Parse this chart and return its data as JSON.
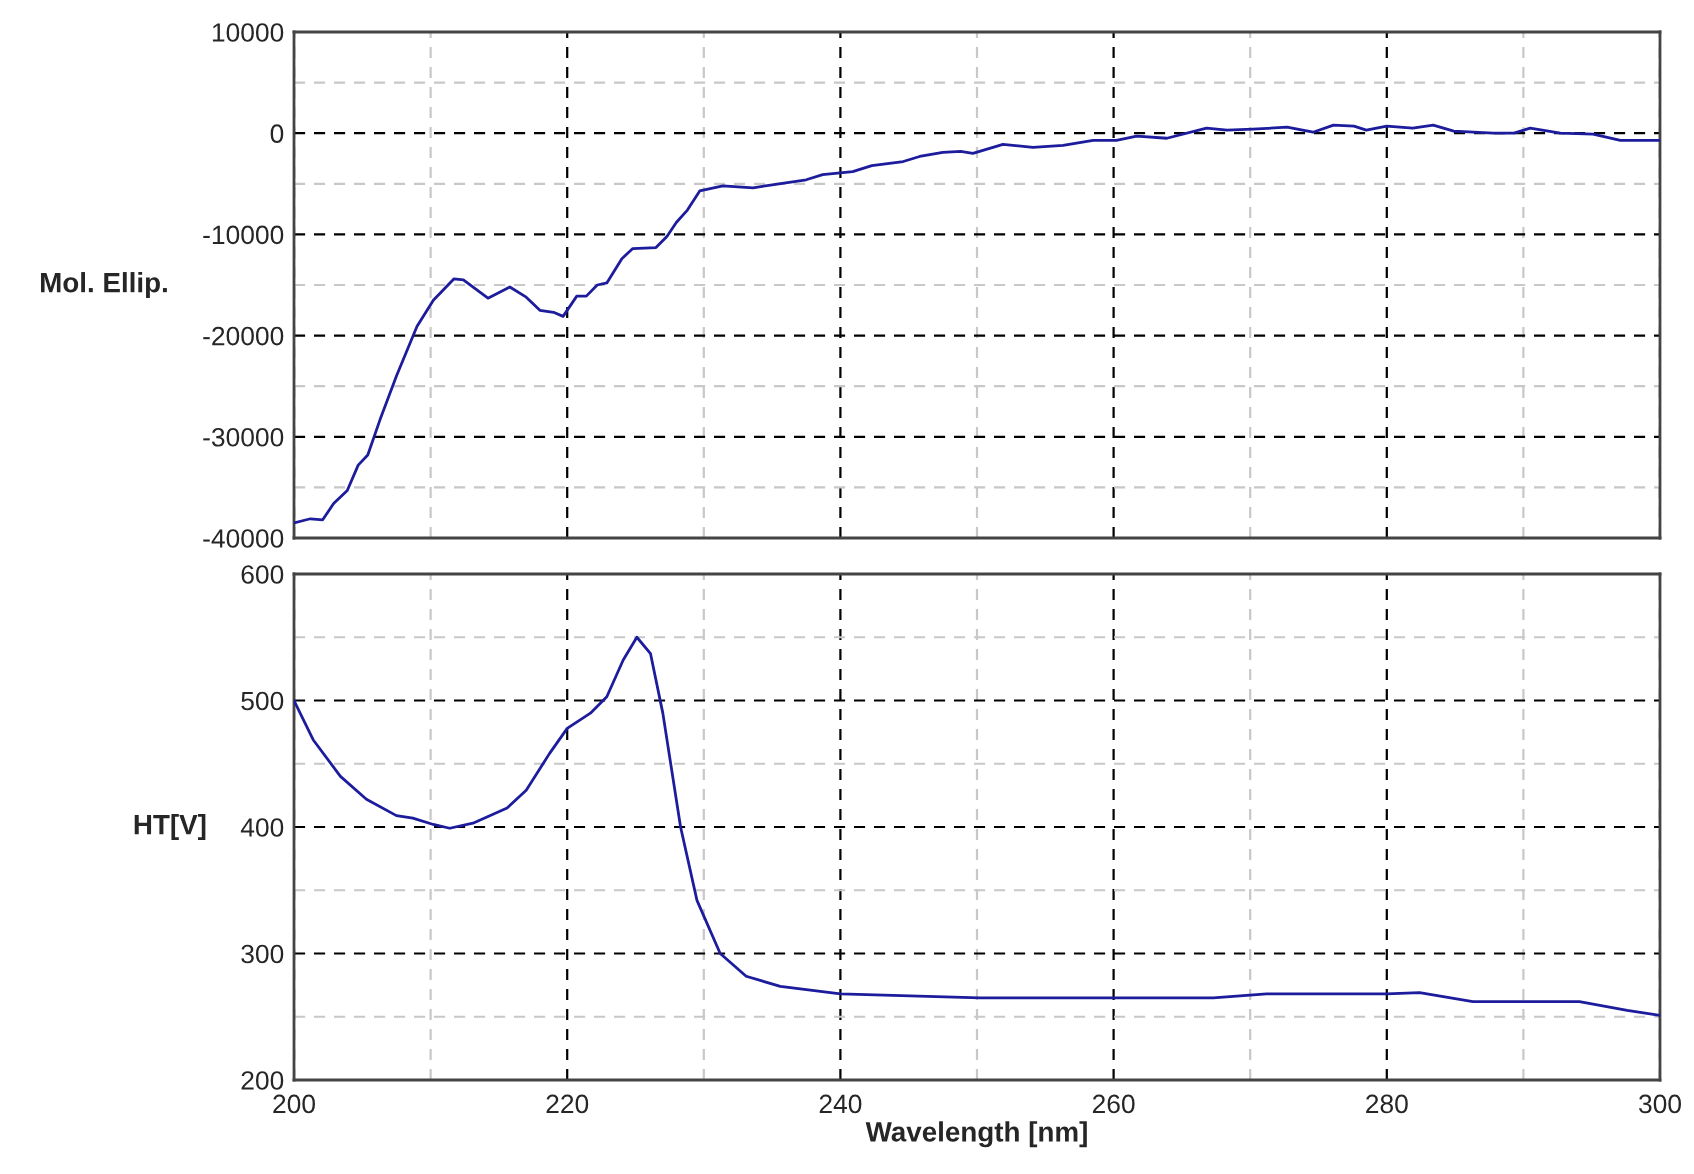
{
  "chart_data": [
    {
      "type": "line",
      "ylabel": "Mol. Ellip.",
      "grid": true,
      "tick_labels": "y",
      "xlim": [
        200,
        300
      ],
      "xticks": [
        200,
        {
          "value": 210,
          "label": null
        },
        220,
        {
          "value": 230,
          "label": null
        },
        240,
        {
          "value": 250,
          "label": null
        },
        260,
        {
          "value": 270,
          "label": null
        },
        280,
        {
          "value": 290,
          "label": null
        },
        300
      ],
      "ylim": [
        -40000,
        10000
      ],
      "yticks": [
        -40000,
        {
          "value": -35000,
          "label": null
        },
        -30000,
        {
          "value": -25000,
          "label": null
        },
        -20000,
        {
          "value": -15000,
          "label": null
        },
        -10000,
        {
          "value": -5000,
          "label": null
        },
        0,
        {
          "value": 5000,
          "label": null
        },
        10000
      ],
      "series": [
        {
          "color": "#1c1c9c",
          "x": [
            200,
            201.2,
            202.1,
            202.9,
            203.9,
            204.7,
            205.4,
            206.3,
            207.5,
            209,
            210.2,
            211.7,
            212.4,
            214.2,
            215.8,
            217,
            218,
            219,
            219.7,
            220.7,
            221.4,
            222.2,
            222.9,
            224,
            224.8,
            226.5,
            227.3,
            228,
            228.8,
            229.7,
            231.4,
            233.6,
            235.5,
            237.5,
            238.7,
            240.9,
            242.3,
            244.6,
            245.8,
            247.5,
            248.8,
            249.7,
            251.9,
            254.1,
            256.3,
            258.5,
            260.2,
            261.7,
            263.9,
            266.8,
            268.3,
            270.2,
            272.7,
            274.6,
            276.1,
            277.6,
            278.5,
            280,
            281.9,
            283.4,
            284.9,
            287.8,
            289.3,
            290.5,
            292.7,
            295.1,
            297.1,
            300
          ],
          "values": [
            -38500,
            -38100,
            -38200,
            -36600,
            -35300,
            -32800,
            -31800,
            -28300,
            -24000,
            -19100,
            -16500,
            -14400,
            -14500,
            -16300,
            -15200,
            -16200,
            -17500,
            -17700,
            -18100,
            -16100,
            -16100,
            -15000,
            -14800,
            -12400,
            -11400,
            -11300,
            -10200,
            -8800,
            -7600,
            -5700,
            -5200,
            -5400,
            -5000,
            -4600,
            -4100,
            -3800,
            -3200,
            -2800,
            -2300,
            -1900,
            -1800,
            -2000,
            -1100,
            -1400,
            -1200,
            -700,
            -700,
            -300,
            -500,
            500,
            300,
            400,
            600,
            100,
            800,
            700,
            300,
            700,
            500,
            800,
            200,
            0,
            0,
            500,
            0,
            -100,
            -700,
            -700
          ]
        }
      ]
    },
    {
      "type": "line",
      "ylabel": "HT[V]",
      "xlabel": "Wavelength [nm]",
      "grid": true,
      "xlim": [
        200,
        300
      ],
      "xticks": [
        200,
        {
          "value": 210,
          "label": null
        },
        220,
        {
          "value": 230,
          "label": null
        },
        240,
        {
          "value": 250,
          "label": null
        },
        260,
        {
          "value": 270,
          "label": null
        },
        280,
        {
          "value": 290,
          "label": null
        },
        300
      ],
      "ylim": [
        200,
        600
      ],
      "yticks": [
        200,
        {
          "value": 250,
          "label": null
        },
        300,
        {
          "value": 350,
          "label": null
        },
        400,
        {
          "value": 450,
          "label": null
        },
        500,
        {
          "value": 550,
          "label": null
        },
        600
      ],
      "series": [
        {
          "color": "#1c1c9c",
          "x": [
            200,
            201.4,
            203.4,
            205.3,
            207.5,
            208.7,
            210.2,
            211.4,
            213.1,
            215.6,
            217,
            218.7,
            220,
            221.7,
            222.9,
            224.1,
            225.1,
            226.1,
            227,
            228.3,
            229.5,
            231.2,
            233.1,
            235.6,
            240,
            250.2,
            260,
            267.3,
            271.2,
            280,
            282.4,
            286.3,
            294.1,
            297.6,
            300
          ],
          "values": [
            500,
            469,
            440,
            422,
            409,
            407,
            402,
            399,
            403,
            415,
            429,
            458,
            478,
            490,
            503,
            532,
            550,
            537,
            490,
            400,
            342,
            300,
            282,
            274,
            268,
            265,
            265,
            265,
            268,
            268,
            269,
            262,
            262,
            255,
            251
          ]
        }
      ]
    }
  ]
}
